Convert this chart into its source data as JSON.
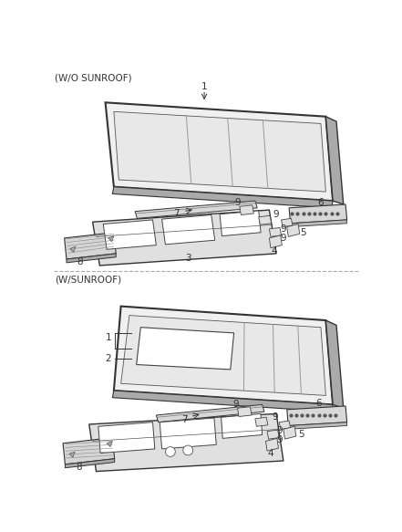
{
  "background_color": "#ffffff",
  "text_color": "#333333",
  "line_color": "#333333",
  "section1_label": "(W/O SUNROOF)",
  "section2_label": "(W/SUNROOF)",
  "label_fontsize": 7.5,
  "number_fontsize": 7.5,
  "divider_color": "#aaaaaa",
  "divider_style": "--"
}
